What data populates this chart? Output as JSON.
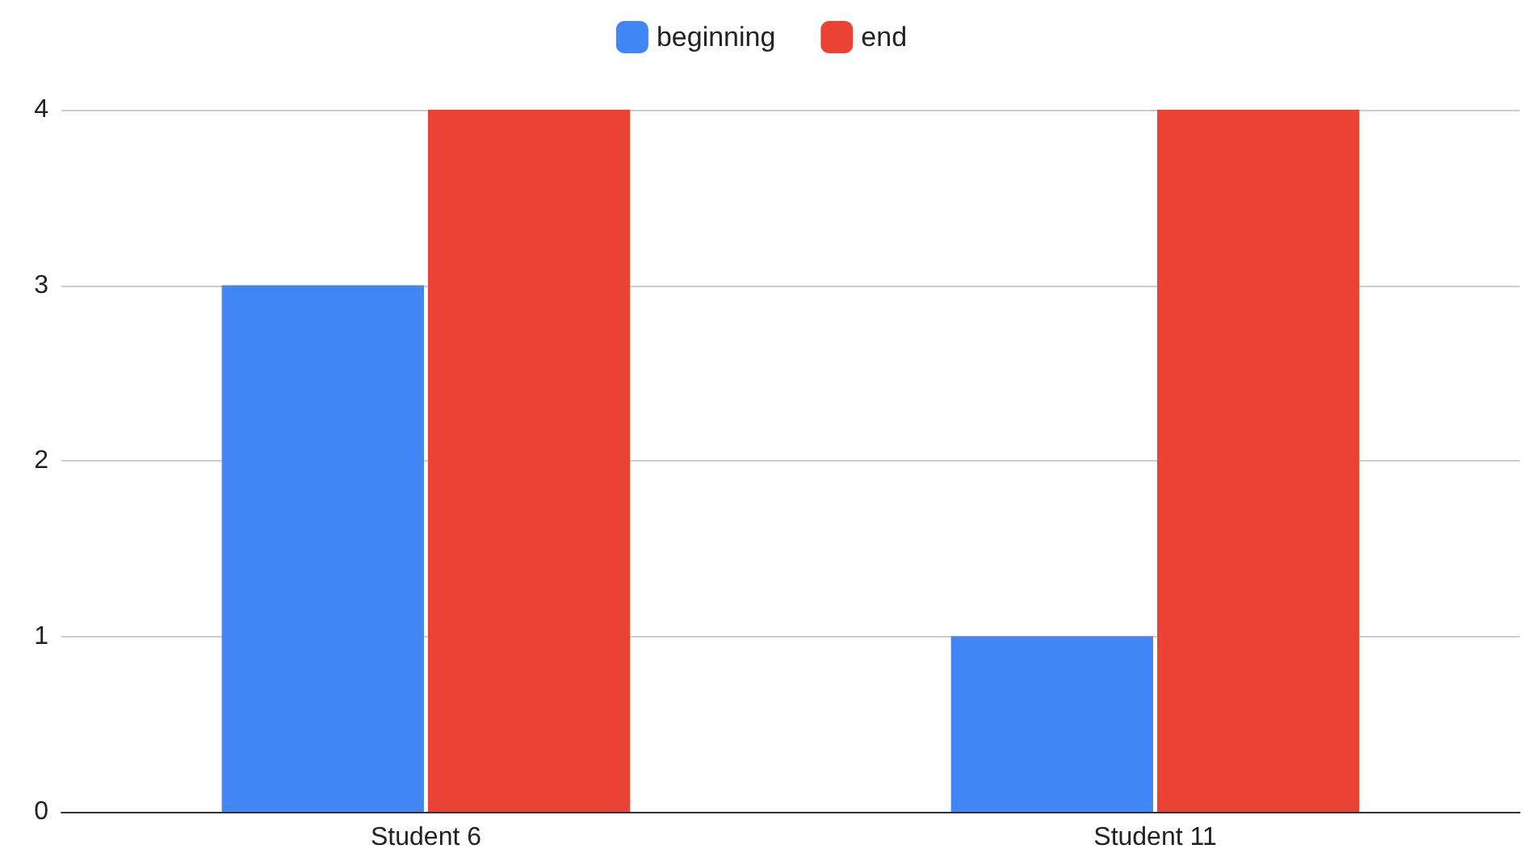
{
  "chart_data": {
    "type": "bar",
    "categories": [
      "Student 6",
      "Student 11"
    ],
    "series": [
      {
        "name": "beginning",
        "color": "#4285f4",
        "values": [
          3,
          1
        ]
      },
      {
        "name": "end",
        "color": "#ea4335",
        "values": [
          4,
          4
        ]
      }
    ],
    "ylim": [
      0,
      4
    ],
    "yticks": [
      0,
      1,
      2,
      3,
      4
    ],
    "grid": "y",
    "legend": "top"
  }
}
